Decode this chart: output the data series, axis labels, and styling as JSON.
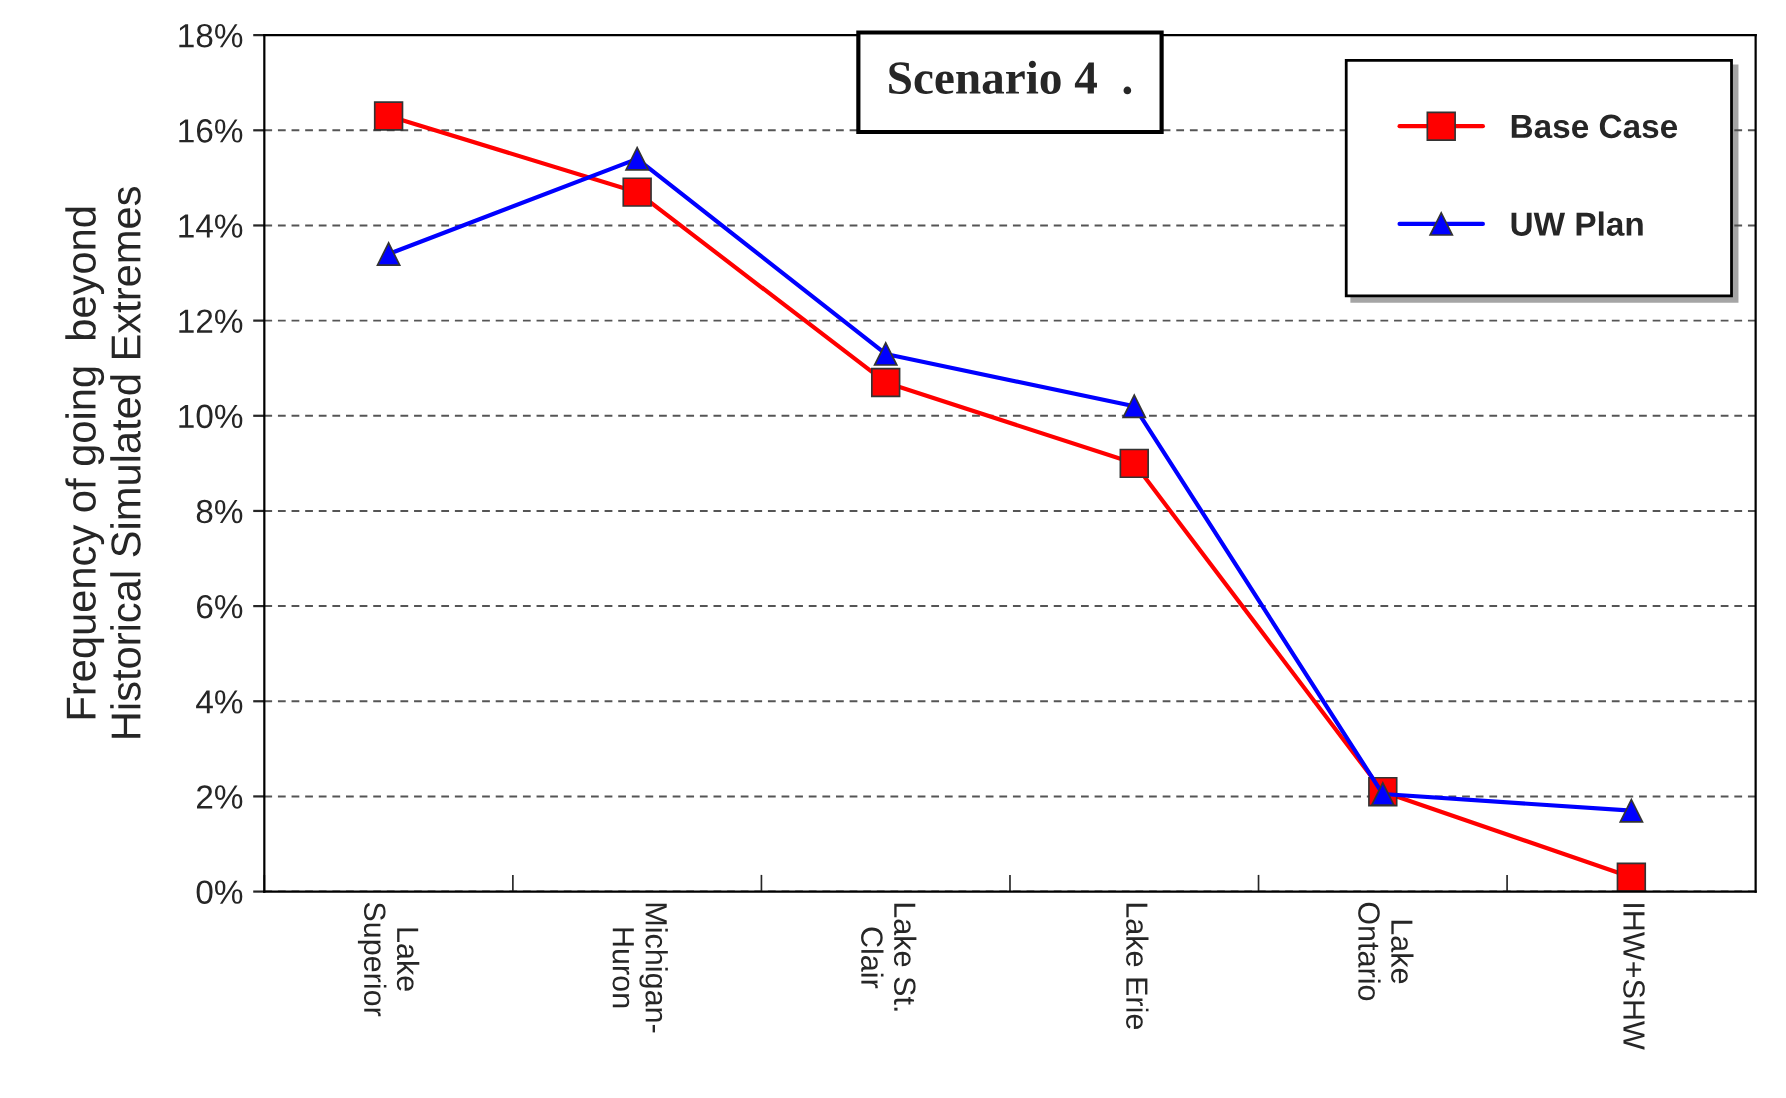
{
  "chart_data": {
    "type": "line",
    "title": "Scenario 4  .",
    "ylabel": "Frequency of going  beyond\nHistorical Simulated Extremes",
    "categories": [
      "Lake\nSuperior",
      "Michigan-\nHuron",
      "Lake St.\nClair",
      "Lake Erie",
      "Lake\nOntario",
      "IHW+SHW"
    ],
    "series": [
      {
        "name": "Base Case",
        "color": "#ff0000",
        "marker": "square",
        "values": [
          16.3,
          14.7,
          10.7,
          9.0,
          2.1,
          0.3
        ]
      },
      {
        "name": "UW Plan",
        "color": "#0000ff",
        "marker": "triangle",
        "values": [
          13.4,
          15.4,
          11.3,
          10.2,
          2.05,
          1.7
        ]
      }
    ],
    "ylim": [
      0,
      18
    ],
    "yticks": [
      {
        "value": 0,
        "label": "0%"
      },
      {
        "value": 2,
        "label": "2%"
      },
      {
        "value": 4,
        "label": "4%"
      },
      {
        "value": 6,
        "label": "6%"
      },
      {
        "value": 8,
        "label": "8%"
      },
      {
        "value": 10,
        "label": "10%"
      },
      {
        "value": 12,
        "label": "12%"
      },
      {
        "value": 14,
        "label": "14%"
      },
      {
        "value": 16,
        "label": "16%"
      },
      {
        "value": 18,
        "label": "18%"
      }
    ],
    "grid": "y",
    "legend": "top right",
    "line_style": "solid"
  }
}
